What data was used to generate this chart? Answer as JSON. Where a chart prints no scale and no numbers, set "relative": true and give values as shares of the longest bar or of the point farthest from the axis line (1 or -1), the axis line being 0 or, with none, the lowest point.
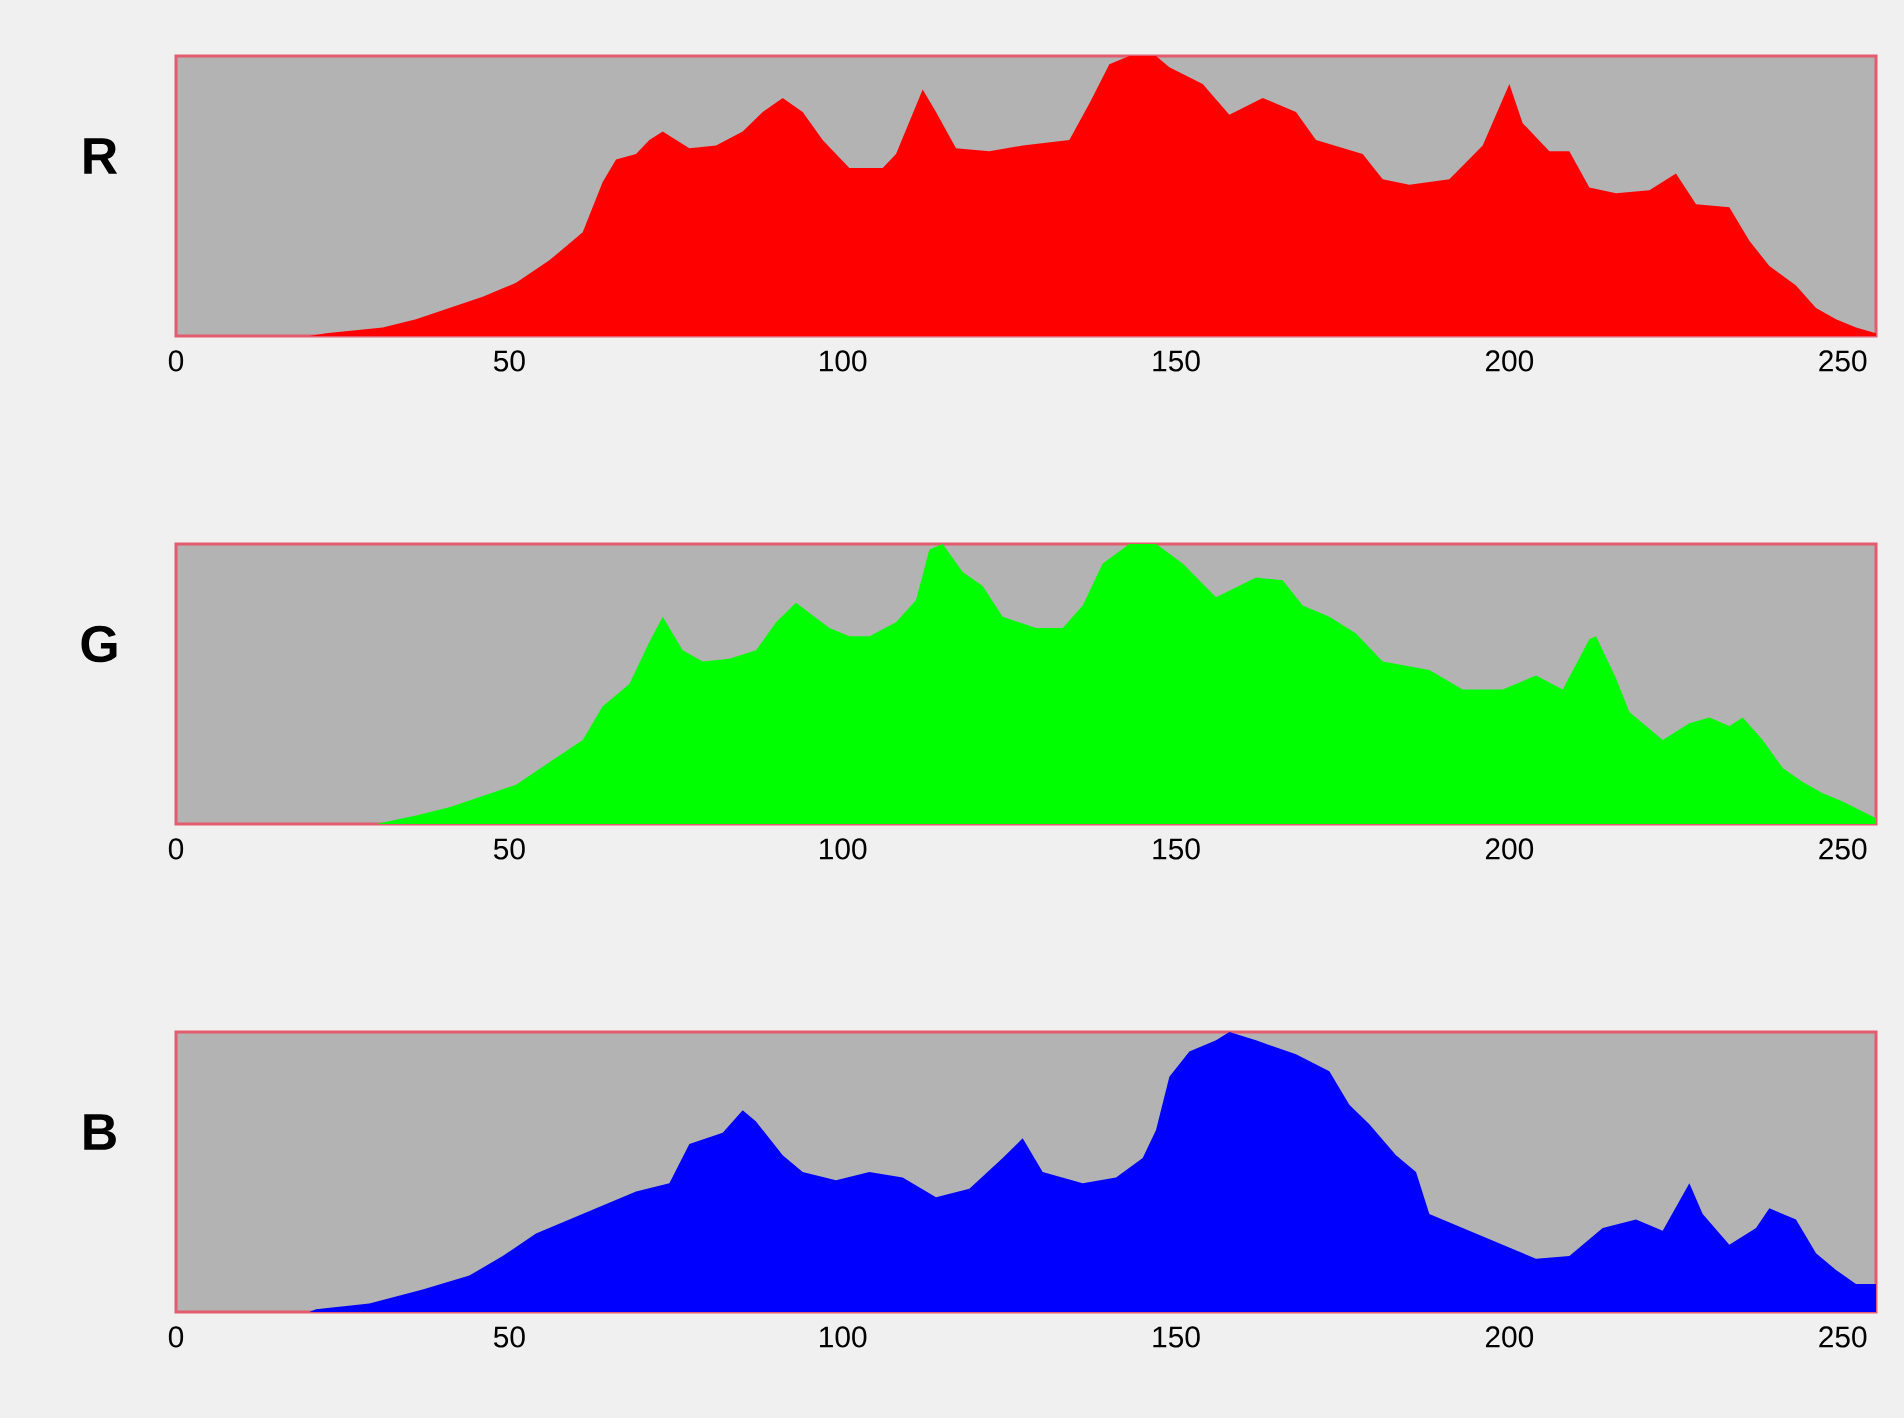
{
  "chart_data": [
    {
      "type": "area",
      "title": "R",
      "relative": true,
      "xlim": [
        0,
        255
      ],
      "xticks": [
        0,
        50,
        100,
        150,
        200,
        250
      ],
      "tick_labels": "x",
      "series": [
        {
          "color": "#ff0000",
          "x": [
            0,
            20,
            22.5,
            31,
            36,
            41,
            46,
            51,
            56,
            61,
            64,
            66,
            69,
            71,
            73,
            77,
            81,
            85,
            88,
            91,
            94,
            97,
            101,
            106,
            108,
            112,
            114,
            117,
            122,
            127,
            134,
            137,
            140,
            143,
            147,
            149,
            154,
            158,
            163,
            168,
            171,
            178,
            181,
            185,
            191,
            196,
            200,
            202,
            206,
            209,
            212,
            216,
            221,
            225,
            228,
            233,
            236,
            239,
            243,
            246,
            249,
            252,
            255
          ],
          "values": [
            0,
            0,
            0.01,
            0.03,
            0.06,
            0.1,
            0.14,
            0.19,
            0.27,
            0.37,
            0.55,
            0.63,
            0.65,
            0.7,
            0.73,
            0.67,
            0.68,
            0.73,
            0.8,
            0.85,
            0.8,
            0.7,
            0.6,
            0.6,
            0.65,
            0.88,
            0.8,
            0.67,
            0.66,
            0.68,
            0.7,
            0.83,
            0.97,
            1.0,
            1.0,
            0.96,
            0.9,
            0.79,
            0.85,
            0.8,
            0.7,
            0.65,
            0.56,
            0.54,
            0.56,
            0.68,
            0.9,
            0.76,
            0.66,
            0.66,
            0.53,
            0.51,
            0.52,
            0.58,
            0.47,
            0.46,
            0.34,
            0.25,
            0.18,
            0.1,
            0.06,
            0.03,
            0.01
          ]
        }
      ]
    },
    {
      "type": "area",
      "title": "G",
      "relative": true,
      "xlim": [
        0,
        255
      ],
      "xticks": [
        0,
        50,
        100,
        150,
        200,
        250
      ],
      "tick_labels": "x",
      "series": [
        {
          "color": "#00ff00",
          "x": [
            0,
            30,
            36,
            41,
            46,
            51,
            56,
            61,
            64,
            68,
            71,
            73,
            76,
            79,
            83,
            87,
            90,
            93,
            98,
            101,
            104,
            108,
            111,
            113,
            115,
            118,
            121,
            124,
            129,
            133,
            136,
            139,
            143,
            147,
            151,
            156,
            162,
            166,
            169,
            173,
            177,
            181,
            188,
            193,
            199,
            204,
            208,
            212,
            213,
            216,
            218,
            223,
            227,
            230,
            233,
            235,
            238,
            241,
            244,
            247,
            250,
            255
          ],
          "values": [
            0,
            0,
            0.03,
            0.06,
            0.1,
            0.14,
            0.22,
            0.3,
            0.42,
            0.5,
            0.65,
            0.74,
            0.62,
            0.58,
            0.59,
            0.62,
            0.72,
            0.79,
            0.7,
            0.67,
            0.67,
            0.72,
            0.8,
            0.98,
            1.0,
            0.9,
            0.85,
            0.74,
            0.7,
            0.7,
            0.78,
            0.93,
            1.0,
            1.0,
            0.93,
            0.81,
            0.88,
            0.87,
            0.78,
            0.74,
            0.68,
            0.58,
            0.55,
            0.48,
            0.48,
            0.53,
            0.48,
            0.66,
            0.67,
            0.52,
            0.4,
            0.3,
            0.36,
            0.38,
            0.35,
            0.38,
            0.3,
            0.2,
            0.15,
            0.11,
            0.08,
            0.02
          ]
        }
      ]
    },
    {
      "type": "area",
      "title": "B",
      "relative": true,
      "xlim": [
        0,
        255
      ],
      "xticks": [
        0,
        50,
        100,
        150,
        200,
        250
      ],
      "tick_labels": "x",
      "series": [
        {
          "color": "#0000ff",
          "x": [
            0,
            20,
            21,
            29,
            37,
            44,
            49,
            54,
            59,
            64,
            69,
            74,
            77,
            82,
            85,
            87,
            91,
            94,
            99,
            104,
            109,
            114,
            119,
            124,
            127,
            130,
            136,
            141,
            145,
            147,
            149,
            152,
            156,
            158,
            162,
            168,
            173,
            176,
            179,
            183,
            186,
            188,
            193,
            199,
            204,
            209,
            214,
            219,
            223,
            227,
            229,
            233,
            237,
            239,
            243,
            246,
            249,
            252,
            255
          ],
          "values": [
            0,
            0,
            0.01,
            0.03,
            0.08,
            0.13,
            0.2,
            0.28,
            0.33,
            0.38,
            0.43,
            0.46,
            0.6,
            0.64,
            0.72,
            0.68,
            0.56,
            0.5,
            0.47,
            0.5,
            0.48,
            0.41,
            0.44,
            0.55,
            0.62,
            0.5,
            0.46,
            0.48,
            0.55,
            0.65,
            0.84,
            0.93,
            0.97,
            1.0,
            0.97,
            0.92,
            0.86,
            0.74,
            0.67,
            0.56,
            0.5,
            0.35,
            0.3,
            0.24,
            0.19,
            0.2,
            0.3,
            0.33,
            0.29,
            0.46,
            0.35,
            0.24,
            0.3,
            0.37,
            0.33,
            0.21,
            0.15,
            0.1,
            0.1
          ]
        }
      ]
    }
  ]
}
